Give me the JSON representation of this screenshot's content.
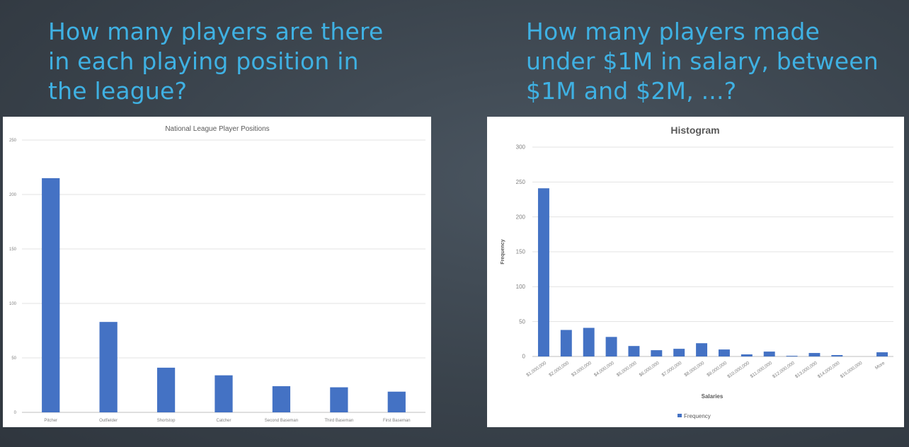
{
  "questions": {
    "left": [
      "How many players are there",
      "in each playing position in",
      "the league?"
    ],
    "right": [
      "How many players made",
      "under $1M in salary, between",
      "$1M and $2M, ...?"
    ]
  },
  "colors": {
    "accent_text": "#3fb1e3",
    "bar": "#4472c4",
    "grid": "#e3e3e3",
    "axis_text": "#7f7f7f"
  },
  "chart_data": [
    {
      "type": "bar",
      "title": "National League Player Positions",
      "xlabel": "",
      "ylabel": "",
      "categories": [
        "Pitcher",
        "Outfielder",
        "Shortstop",
        "Catcher",
        "Second Baseman",
        "Third Baseman",
        "First Baseman"
      ],
      "values": [
        215,
        83,
        41,
        34,
        24,
        23,
        19
      ],
      "ylim": [
        0,
        250
      ],
      "yticks": [
        0,
        50,
        100,
        150,
        200,
        250
      ],
      "grid": true,
      "legend": "none"
    },
    {
      "type": "bar",
      "title": "Histogram",
      "xlabel": "Salaries",
      "ylabel": "Frequency",
      "categories": [
        "$1,000,000",
        "$2,000,000",
        "$3,000,000",
        "$4,000,000",
        "$5,000,000",
        "$6,000,000",
        "$7,000,000",
        "$8,000,000",
        "$9,000,000",
        "$10,000,000",
        "$11,000,000",
        "$12,000,000",
        "$13,000,000",
        "$14,000,000",
        "$15,000,000",
        "More"
      ],
      "series": [
        {
          "name": "Frequency",
          "values": [
            241,
            38,
            41,
            28,
            15,
            9,
            11,
            19,
            10,
            3,
            7,
            1,
            5,
            2,
            0,
            6
          ]
        }
      ],
      "ylim": [
        0,
        300
      ],
      "yticks": [
        0,
        50,
        100,
        150,
        200,
        250,
        300
      ],
      "grid": true,
      "legend": "bottom"
    }
  ]
}
